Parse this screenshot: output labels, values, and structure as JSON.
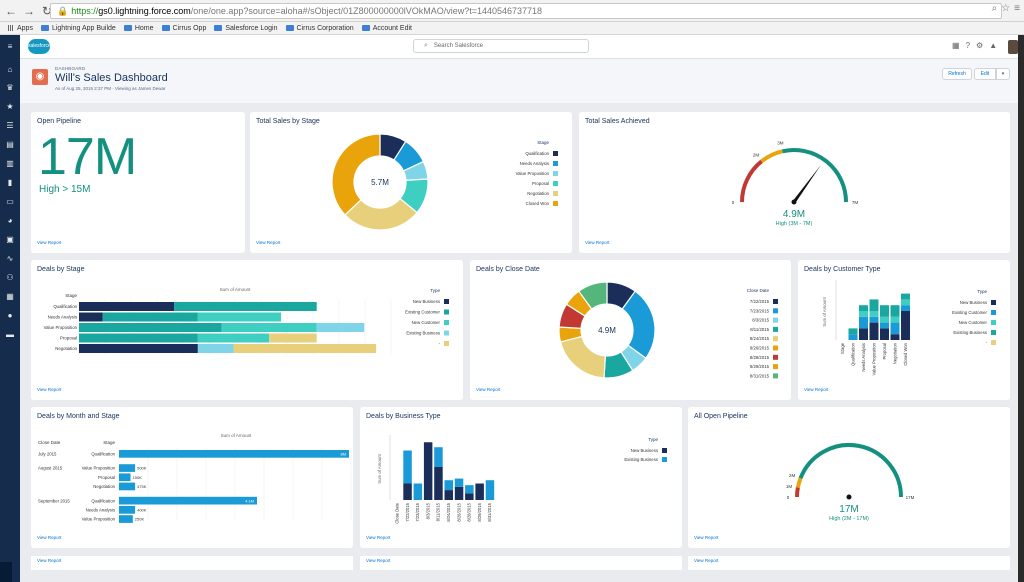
{
  "browser": {
    "url_https": "https://",
    "url_host": "gs0.lightning.force.com",
    "url_path": "/one/one.app?source=aloha#/sObject/01Z800000000lVOkMAO/view?t=1440546737718",
    "bookmarks": [
      "Apps",
      "Lightning App Builde",
      "Home",
      "Cirrus Opp",
      "Salesforce Login",
      "Cirrus Corporation",
      "Account Edit"
    ]
  },
  "header": {
    "logo_text": "salesforce",
    "search_placeholder": "Search Salesforce"
  },
  "page": {
    "type_label": "DASHBOARD",
    "title": "Will's Sales Dashboard",
    "subtitle": "As of Aug 25, 2015 2:37 PM · Viewing as James Dewar",
    "refresh_label": "Refresh",
    "edit_label": "Edit",
    "more_label": "▾"
  },
  "view_report": "View Report",
  "cards": {
    "open_pipeline": {
      "title": "Open Pipeline",
      "value": "17M",
      "subvalue": "High > 15M"
    },
    "total_sales_stage": {
      "title": "Total Sales by Stage"
    },
    "total_sales_achieved": {
      "title": "Total Sales Achieved"
    },
    "deals_by_stage": {
      "title": "Deals by Stage"
    },
    "deals_by_close_date": {
      "title": "Deals by Close Date"
    },
    "deals_by_customer_type": {
      "title": "Deals by Customer Type"
    },
    "deals_by_month_stage": {
      "title": "Deals by Month and Stage"
    },
    "deals_by_business_type": {
      "title": "Deals by Business Type"
    },
    "all_open_pipeline": {
      "title": "All Open Pipeline"
    }
  },
  "colors": {
    "navy": "#1b2e5a",
    "blue": "#1a9bd7",
    "teal": "#1aa7a0",
    "lightblue": "#7fd4e8",
    "aqua": "#3fcfc2",
    "gold": "#e8a40a",
    "sand": "#e7cf7b"
  },
  "chart_data": [
    {
      "id": "total_sales_by_stage",
      "type": "pie",
      "title": "Total Sales by Stage",
      "center_label": "5.7M",
      "legend_title": "Stage",
      "legend_position": "right",
      "slices": [
        {
          "name": "Qualification",
          "value": 0.09,
          "color": "#1b2e5a"
        },
        {
          "name": "Needs Analysis",
          "value": 0.09,
          "color": "#1a9bd7"
        },
        {
          "name": "Value Proposition",
          "value": 0.06,
          "color": "#7fd4e8"
        },
        {
          "name": "Proposal",
          "value": 0.12,
          "color": "#3fcfc2"
        },
        {
          "name": "Negotiation",
          "value": 0.27,
          "color": "#e7cf7b"
        },
        {
          "name": "Closed Won",
          "value": 0.37,
          "color": "#e8a40a"
        }
      ]
    },
    {
      "id": "total_sales_achieved",
      "type": "gauge",
      "title": "Total Sales Achieved",
      "value_label": "4.9M",
      "range_label": "High (3M - 7M)",
      "value": 4.9,
      "min": 0,
      "max": 7,
      "bands": [
        {
          "from": 0,
          "to": 2,
          "color": "#c23934"
        },
        {
          "from": 2,
          "to": 3,
          "color": "#e8a40a"
        },
        {
          "from": 3,
          "to": 7,
          "color": "#13907f"
        }
      ],
      "tick_labels": [
        "0",
        "2M",
        "3M",
        "7M"
      ]
    },
    {
      "id": "deals_by_stage",
      "type": "bar",
      "orientation": "horizontal",
      "stacked": true,
      "title": "Deals by Stage",
      "ylabel": "Stage",
      "xlabel": "Sum of Amount",
      "legend_title": "Type",
      "legend_position": "right",
      "categories": [
        "Qualification",
        "Needs Analysis",
        "Value Proposition",
        "Proposal",
        "Negotiation"
      ],
      "series": [
        {
          "name": "New Business",
          "color": "#1b2e5a",
          "values": [
            40,
            10,
            0,
            0,
            50
          ]
        },
        {
          "name": "Existing Customer",
          "color": "#1aa7a0",
          "values": [
            60,
            40,
            60,
            50,
            0
          ]
        },
        {
          "name": "New Customer",
          "color": "#3fcfc2",
          "values": [
            0,
            35,
            40,
            30,
            0
          ]
        },
        {
          "name": "Existing Business",
          "color": "#7fd4e8",
          "values": [
            0,
            0,
            20,
            0,
            15
          ]
        },
        {
          "name": "-",
          "color": "#e7cf7b",
          "values": [
            0,
            0,
            0,
            20,
            60
          ]
        }
      ]
    },
    {
      "id": "deals_by_close_date",
      "type": "pie",
      "title": "Deals by Close Date",
      "center_label": "4.9M",
      "legend_title": "Close Date",
      "legend_position": "right",
      "slices": [
        {
          "name": "7/22/2015",
          "value": 0.1,
          "color": "#1b2e5a"
        },
        {
          "name": "7/23/2015",
          "value": 0.25,
          "color": "#1a9bd7"
        },
        {
          "name": "8/3/2015",
          "value": 0.06,
          "color": "#7fd4e8"
        },
        {
          "name": "8/11/2015",
          "value": 0.1,
          "color": "#1aa7a0"
        },
        {
          "name": "8/24/2015",
          "value": 0.2,
          "color": "#e7cf7b"
        },
        {
          "name": "8/26/2015",
          "value": 0.05,
          "color": "#e8a40a"
        },
        {
          "name": "8/28/2015",
          "value": 0.08,
          "color": "#c23934"
        },
        {
          "name": "8/29/2015",
          "value": 0.06,
          "color": "#e8a40a"
        },
        {
          "name": "8/31/2015",
          "value": 0.1,
          "color": "#55b67c"
        }
      ]
    },
    {
      "id": "deals_by_customer_type",
      "type": "bar",
      "stacked": true,
      "title": "Deals by Customer Type",
      "ylabel": "Sum of Amount",
      "legend_title": "Type",
      "categories": [
        "Stage",
        "Qualification",
        "Needs Analysis",
        "Value Proposition",
        "Proposal",
        "Negotiation",
        "Closed Won"
      ],
      "series": [
        {
          "name": "New Business",
          "color": "#1b2e5a",
          "values": [
            0,
            0,
            2,
            3,
            2,
            1,
            5
          ]
        },
        {
          "name": "Existing Customer",
          "color": "#1a9bd7",
          "values": [
            0,
            1,
            2,
            1,
            1,
            2,
            1
          ]
        },
        {
          "name": "New Customer",
          "color": "#3fcfc2",
          "values": [
            0,
            0,
            1,
            1,
            1,
            1,
            1
          ]
        },
        {
          "name": "Existing Business",
          "color": "#1aa7a0",
          "values": [
            0,
            1,
            1,
            2,
            2,
            2,
            1
          ]
        },
        {
          "name": "-",
          "color": "#e7cf7b",
          "values": [
            0,
            0,
            0,
            0,
            0,
            0,
            0
          ]
        }
      ]
    },
    {
      "id": "deals_by_month_stage",
      "type": "bar",
      "orientation": "horizontal",
      "title": "Deals by Month and Stage",
      "xlabel": "Sum of Amount",
      "columns": [
        "Close Date",
        "Stage"
      ],
      "rows": [
        {
          "month": "July 2015",
          "stage": "Qualification",
          "value": 1.0,
          "label": "8M"
        },
        {
          "month": "August 2015",
          "stage": "Value Proposition",
          "value": 0.07,
          "label": "500K"
        },
        {
          "month": "",
          "stage": "Proposal",
          "value": 0.05,
          "label": "150K"
        },
        {
          "month": "",
          "stage": "Negotiation",
          "value": 0.07,
          "label": "475K"
        },
        {
          "month": "September 2015",
          "stage": "Qualification",
          "value": 0.6,
          "label": "4.1M"
        },
        {
          "month": "",
          "stage": "Needs Analysis",
          "value": 0.07,
          "label": "400K"
        },
        {
          "month": "",
          "stage": "Value Proposition",
          "value": 0.06,
          "label": "250K"
        }
      ]
    },
    {
      "id": "deals_by_business_type",
      "type": "bar",
      "stacked": true,
      "title": "Deals by Business Type",
      "ylabel": "Sum of Amount",
      "legend_title": "Type",
      "categories": [
        "Close Date",
        "7/22/2015",
        "7/23/2015",
        "8/3/2015",
        "8/11/2015",
        "8/24/2015",
        "8/26/2015",
        "8/28/2015",
        "8/29/2015",
        "8/31/2015"
      ],
      "series": [
        {
          "name": "New Business",
          "color": "#1b2e5a",
          "values": [
            0,
            1.0,
            0,
            3.5,
            2.0,
            0.6,
            0.8,
            0.4,
            1.0,
            0
          ]
        },
        {
          "name": "Existing Business",
          "color": "#1a9bd7",
          "values": [
            0,
            2.0,
            1.0,
            0,
            1.2,
            0.6,
            0.5,
            0.5,
            0,
            1.2
          ]
        }
      ]
    },
    {
      "id": "all_open_pipeline",
      "type": "gauge",
      "title": "All Open Pipeline",
      "value_label": "17M",
      "range_label": "High (2M - 17M)",
      "value": 17,
      "min": 0,
      "max": 17,
      "bands": [
        {
          "from": 0,
          "to": 1,
          "color": "#c23934"
        },
        {
          "from": 1,
          "to": 2,
          "color": "#e8a40a"
        },
        {
          "from": 2,
          "to": 17,
          "color": "#13907f"
        }
      ],
      "tick_labels": [
        "0",
        "1M",
        "2M",
        "17M"
      ]
    }
  ]
}
